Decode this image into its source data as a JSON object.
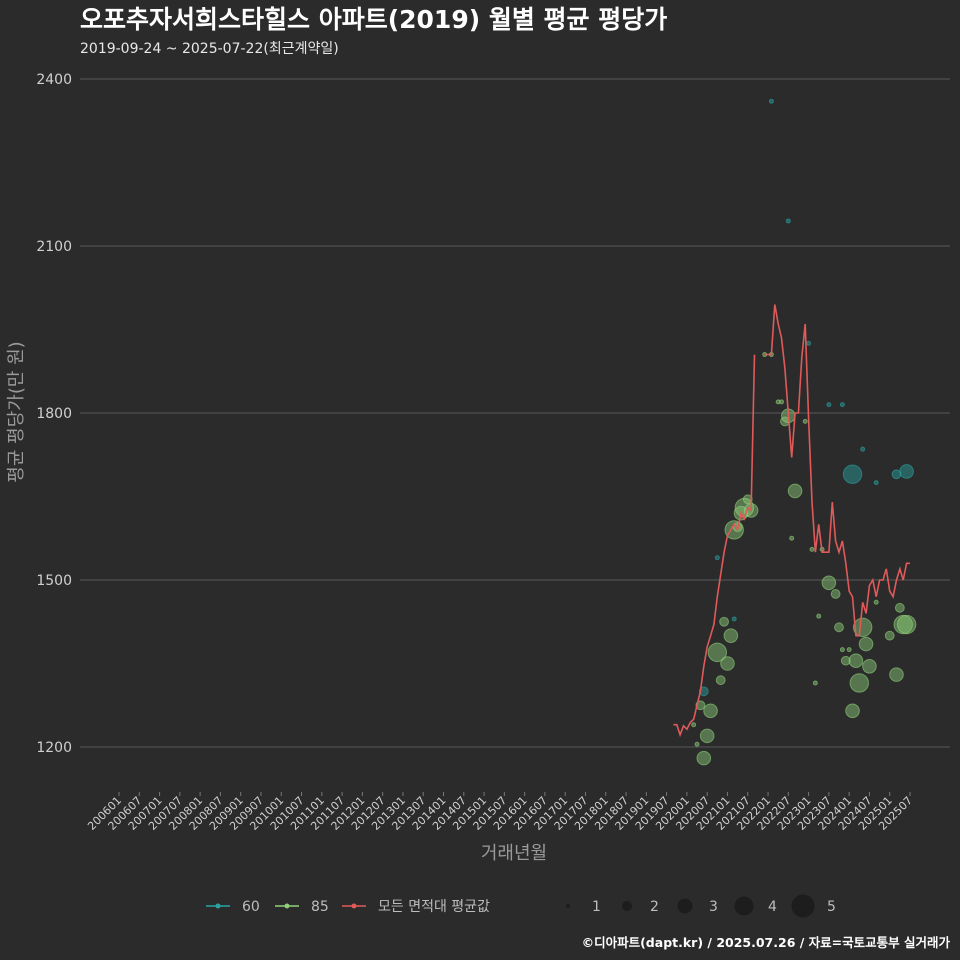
{
  "chart_data": {
    "type": "scatter",
    "title": "오포추자서희스타힐스 아파트(2019) 월별 평균 평당가",
    "subtitle": "2019-09-24 ~ 2025-07-22(최근계약일)",
    "xlabel": "거래년월",
    "ylabel": "평균 평당가(만 원)",
    "caption": "©디아파트(dapt.kr) / 2025.07.26 / 자료=국토교통부 실거래가",
    "ylim": [
      1110,
      2440
    ],
    "yticks": [
      1200,
      1500,
      1800,
      2100,
      2400
    ],
    "x_tick_labels": [
      "200601",
      "200607",
      "200701",
      "200707",
      "200801",
      "200807",
      "200901",
      "200907",
      "201001",
      "201007",
      "201101",
      "201107",
      "201201",
      "201207",
      "201301",
      "201307",
      "201401",
      "201407",
      "201501",
      "201507",
      "201601",
      "201607",
      "201701",
      "201707",
      "201801",
      "201807",
      "201901",
      "201907",
      "202001",
      "202007",
      "202101",
      "202107",
      "202201",
      "202207",
      "202301",
      "202307",
      "202401",
      "202407",
      "202501",
      "202507"
    ],
    "x_start": "2005-10",
    "x_end": "2025-12",
    "series": [
      {
        "name": "60",
        "color": "#2aa3a3",
        "points": [
          {
            "x": "2020-06",
            "y": 1300,
            "n": 2
          },
          {
            "x": "2020-10",
            "y": 1540,
            "n": 1
          },
          {
            "x": "2021-03",
            "y": 1430,
            "n": 1
          },
          {
            "x": "2022-02",
            "y": 2360,
            "n": 1
          },
          {
            "x": "2022-07",
            "y": 2145,
            "n": 1
          },
          {
            "x": "2023-01",
            "y": 1925,
            "n": 1
          },
          {
            "x": "2023-07",
            "y": 1815,
            "n": 1
          },
          {
            "x": "2023-11",
            "y": 1815,
            "n": 1
          },
          {
            "x": "2024-02",
            "y": 1690,
            "n": 4
          },
          {
            "x": "2024-05",
            "y": 1735,
            "n": 1
          },
          {
            "x": "2024-09",
            "y": 1675,
            "n": 1
          },
          {
            "x": "2025-03",
            "y": 1690,
            "n": 2
          },
          {
            "x": "2025-06",
            "y": 1695,
            "n": 3
          }
        ]
      },
      {
        "name": "85",
        "color": "#8fd17a",
        "points": [
          {
            "x": "2020-03",
            "y": 1240,
            "n": 1
          },
          {
            "x": "2020-04",
            "y": 1205,
            "n": 1
          },
          {
            "x": "2020-05",
            "y": 1275,
            "n": 2
          },
          {
            "x": "2020-06",
            "y": 1180,
            "n": 3
          },
          {
            "x": "2020-07",
            "y": 1220,
            "n": 3
          },
          {
            "x": "2020-08",
            "y": 1265,
            "n": 3
          },
          {
            "x": "2020-10",
            "y": 1370,
            "n": 4
          },
          {
            "x": "2020-11",
            "y": 1320,
            "n": 2
          },
          {
            "x": "2020-12",
            "y": 1425,
            "n": 2
          },
          {
            "x": "2021-01",
            "y": 1350,
            "n": 3
          },
          {
            "x": "2021-02",
            "y": 1400,
            "n": 3
          },
          {
            "x": "2021-03",
            "y": 1590,
            "n": 4
          },
          {
            "x": "2021-04",
            "y": 1595,
            "n": 2
          },
          {
            "x": "2021-05",
            "y": 1620,
            "n": 3
          },
          {
            "x": "2021-06",
            "y": 1630,
            "n": 4
          },
          {
            "x": "2021-07",
            "y": 1645,
            "n": 2
          },
          {
            "x": "2021-08",
            "y": 1625,
            "n": 3
          },
          {
            "x": "2021-12",
            "y": 1905,
            "n": 1
          },
          {
            "x": "2022-02",
            "y": 1905,
            "n": 1
          },
          {
            "x": "2022-04",
            "y": 1820,
            "n": 1
          },
          {
            "x": "2022-05",
            "y": 1820,
            "n": 1
          },
          {
            "x": "2022-06",
            "y": 1785,
            "n": 2
          },
          {
            "x": "2022-07",
            "y": 1795,
            "n": 3
          },
          {
            "x": "2022-08",
            "y": 1575,
            "n": 1
          },
          {
            "x": "2022-09",
            "y": 1660,
            "n": 3
          },
          {
            "x": "2022-12",
            "y": 1785,
            "n": 1
          },
          {
            "x": "2023-02",
            "y": 1555,
            "n": 1
          },
          {
            "x": "2023-03",
            "y": 1315,
            "n": 1
          },
          {
            "x": "2023-04",
            "y": 1435,
            "n": 1
          },
          {
            "x": "2023-05",
            "y": 1555,
            "n": 1
          },
          {
            "x": "2023-07",
            "y": 1495,
            "n": 3
          },
          {
            "x": "2023-09",
            "y": 1475,
            "n": 2
          },
          {
            "x": "2023-10",
            "y": 1415,
            "n": 2
          },
          {
            "x": "2023-11",
            "y": 1375,
            "n": 1
          },
          {
            "x": "2023-12",
            "y": 1355,
            "n": 2
          },
          {
            "x": "2024-01",
            "y": 1375,
            "n": 1
          },
          {
            "x": "2024-02",
            "y": 1265,
            "n": 3
          },
          {
            "x": "2024-03",
            "y": 1355,
            "n": 3
          },
          {
            "x": "2024-04",
            "y": 1315,
            "n": 4
          },
          {
            "x": "2024-05",
            "y": 1415,
            "n": 4
          },
          {
            "x": "2024-06",
            "y": 1385,
            "n": 3
          },
          {
            "x": "2024-07",
            "y": 1345,
            "n": 3
          },
          {
            "x": "2024-09",
            "y": 1460,
            "n": 1
          },
          {
            "x": "2025-01",
            "y": 1400,
            "n": 2
          },
          {
            "x": "2025-03",
            "y": 1330,
            "n": 3
          },
          {
            "x": "2025-04",
            "y": 1450,
            "n": 2
          },
          {
            "x": "2025-05",
            "y": 1420,
            "n": 4
          },
          {
            "x": "2025-06",
            "y": 1420,
            "n": 4
          }
        ]
      }
    ],
    "average_line": {
      "name": "모든 면적대 평균값",
      "color": "#e05a5a",
      "x": [
        "2019-09",
        "2019-10",
        "2019-11",
        "2019-12",
        "2020-01",
        "2020-02",
        "2020-03",
        "2020-04",
        "2020-05",
        "2020-06",
        "2020-07",
        "2020-08",
        "2020-09",
        "2020-10",
        "2020-11",
        "2020-12",
        "2021-01",
        "2021-02",
        "2021-03",
        "2021-04",
        "2021-05",
        "2021-06",
        "2021-07",
        "2021-08",
        "2021-09",
        "2021-12",
        "2022-01",
        "2022-02",
        "2022-03",
        "2022-04",
        "2022-05",
        "2022-06",
        "2022-07",
        "2022-08",
        "2022-09",
        "2022-10",
        "2022-11",
        "2022-12",
        "2023-01",
        "2023-02",
        "2023-03",
        "2023-04",
        "2023-05",
        "2023-06",
        "2023-07",
        "2023-08",
        "2023-09",
        "2023-10",
        "2023-11",
        "2023-12",
        "2024-01",
        "2024-02",
        "2024-03",
        "2024-04",
        "2024-05",
        "2024-06",
        "2024-07",
        "2024-08",
        "2024-09",
        "2024-10",
        "2024-11",
        "2024-12",
        "2025-01",
        "2025-02",
        "2025-03",
        "2025-04",
        "2025-05",
        "2025-06",
        "2025-07"
      ],
      "y": [
        1240,
        1240,
        1222,
        1238,
        1232,
        1244,
        1250,
        1275,
        1300,
        1345,
        1380,
        1400,
        1420,
        1470,
        1510,
        1550,
        1580,
        1590,
        1600,
        1590,
        1620,
        1610,
        1630,
        1625,
        1905,
        1905,
        1905,
        1905,
        1995,
        1960,
        1935,
        1880,
        1800,
        1720,
        1800,
        1800,
        1900,
        1960,
        1790,
        1640,
        1550,
        1600,
        1550,
        1550,
        1550,
        1640,
        1570,
        1550,
        1570,
        1530,
        1480,
        1470,
        1400,
        1400,
        1460,
        1440,
        1490,
        1500,
        1470,
        1500,
        1500,
        1520,
        1480,
        1470,
        1500,
        1520,
        1500,
        1530,
        1530
      ]
    },
    "legend": {
      "series_labels": [
        "60",
        "85",
        "모든 면적대 평균값"
      ],
      "size_labels": [
        "1",
        "2",
        "3",
        "4",
        "5"
      ]
    }
  }
}
